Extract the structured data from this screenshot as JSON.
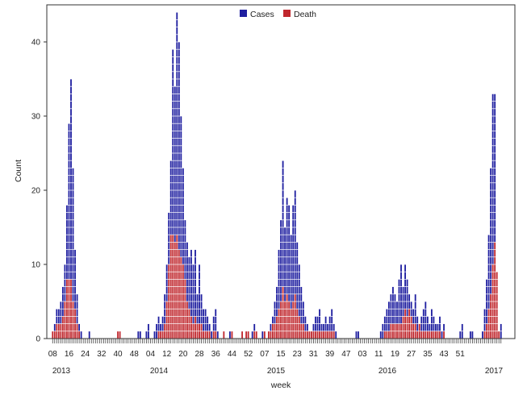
{
  "chart_data": {
    "type": "bar",
    "title": "",
    "xlabel": "week",
    "ylabel": "Count",
    "ylim": [
      0,
      45
    ],
    "y_ticks": [
      0,
      10,
      20,
      30,
      40
    ],
    "grid": false,
    "legend_placement": "top-center",
    "colors": {
      "cases": "#1f1fa0",
      "death": "#c0272d"
    },
    "week_tick_labels": [
      "08",
      "16",
      "24",
      "32",
      "40",
      "48",
      "04",
      "12",
      "20",
      "28",
      "36",
      "44",
      "52",
      "07",
      "15",
      "23",
      "31",
      "39",
      "47",
      "03",
      "11",
      "19",
      "27",
      "35",
      "43",
      "51"
    ],
    "year_labels": [
      "2013",
      "2014",
      "2015",
      "2016",
      "2017"
    ],
    "series": [
      {
        "name": "Cases",
        "values": [
          1,
          2,
          4,
          4,
          5,
          7,
          10,
          18,
          29,
          35,
          23,
          12,
          6,
          2,
          1,
          0,
          0,
          0,
          1,
          0,
          0,
          0,
          0,
          0,
          0,
          0,
          0,
          0,
          0,
          0,
          0,
          0,
          1,
          1,
          0,
          0,
          0,
          0,
          0,
          0,
          0,
          0,
          1,
          1,
          0,
          0,
          1,
          2,
          0,
          0,
          1,
          2,
          3,
          2,
          3,
          6,
          10,
          17,
          24,
          39,
          34,
          44,
          40,
          30,
          23,
          16,
          13,
          11,
          12,
          10,
          12,
          6,
          10,
          6,
          4,
          4,
          3,
          2,
          1,
          3,
          4,
          1,
          0,
          0,
          1,
          0,
          0,
          1,
          1,
          0,
          0,
          0,
          0,
          1,
          0,
          1,
          1,
          0,
          1,
          2,
          1,
          0,
          0,
          1,
          1,
          0,
          1,
          2,
          3,
          5,
          7,
          12,
          16,
          24,
          15,
          19,
          18,
          14,
          18,
          20,
          13,
          10,
          7,
          5,
          3,
          2,
          1,
          1,
          2,
          3,
          3,
          4,
          2,
          2,
          3,
          2,
          3,
          4,
          2,
          1,
          0,
          0,
          0,
          0,
          0,
          0,
          0,
          0,
          0,
          1,
          1,
          0,
          0,
          0,
          0,
          0,
          0,
          0,
          0,
          0,
          0,
          1,
          2,
          3,
          4,
          5,
          6,
          7,
          6,
          5,
          8,
          10,
          7,
          10,
          8,
          6,
          5,
          4,
          6,
          3,
          2,
          3,
          4,
          5,
          3,
          2,
          4,
          3,
          2,
          2,
          3,
          1,
          2,
          0,
          0,
          0,
          0,
          0,
          0,
          0,
          1,
          2,
          0,
          0,
          0,
          1,
          1,
          0,
          0,
          0,
          0,
          1,
          4,
          8,
          14,
          23,
          33,
          33,
          9,
          1,
          2
        ],
        "y_axis": "Count"
      },
      {
        "name": "Death",
        "values": [
          1,
          1,
          2,
          2,
          2,
          3,
          5,
          8,
          8,
          8,
          5,
          4,
          2,
          1,
          0,
          0,
          0,
          0,
          0,
          0,
          0,
          0,
          0,
          0,
          0,
          0,
          0,
          0,
          0,
          0,
          0,
          0,
          1,
          1,
          0,
          0,
          0,
          0,
          0,
          0,
          0,
          0,
          0,
          0,
          0,
          0,
          0,
          0,
          0,
          0,
          0,
          0,
          1,
          1,
          1,
          2,
          5,
          10,
          14,
          14,
          13,
          14,
          12,
          11,
          10,
          8,
          5,
          4,
          3,
          2,
          3,
          2,
          2,
          2,
          1,
          1,
          1,
          1,
          0,
          1,
          1,
          0,
          0,
          0,
          1,
          0,
          0,
          0,
          1,
          0,
          0,
          0,
          0,
          1,
          0,
          1,
          1,
          0,
          0,
          1,
          1,
          0,
          0,
          0,
          1,
          0,
          1,
          1,
          2,
          2,
          3,
          4,
          5,
          7,
          5,
          6,
          5,
          4,
          5,
          6,
          4,
          3,
          2,
          2,
          1,
          1,
          1,
          1,
          1,
          1,
          1,
          1,
          1,
          1,
          1,
          1,
          1,
          1,
          1,
          0,
          0,
          0,
          0,
          0,
          0,
          0,
          0,
          0,
          0,
          0,
          0,
          0,
          0,
          0,
          0,
          0,
          0,
          0,
          0,
          0,
          0,
          0,
          0,
          1,
          1,
          1,
          2,
          2,
          2,
          2,
          2,
          2,
          3,
          4,
          3,
          4,
          3,
          2,
          2,
          1,
          2,
          1,
          1,
          1,
          1,
          1,
          1,
          1,
          1,
          1,
          1,
          0,
          1,
          0,
          0,
          0,
          0,
          0,
          0,
          0,
          0,
          0,
          0,
          0,
          0,
          0,
          0,
          0,
          0,
          0,
          0,
          0,
          1,
          2,
          4,
          6,
          10,
          13,
          9,
          3,
          0,
          0,
          0
        ],
        "y_axis": "Count"
      }
    ]
  }
}
